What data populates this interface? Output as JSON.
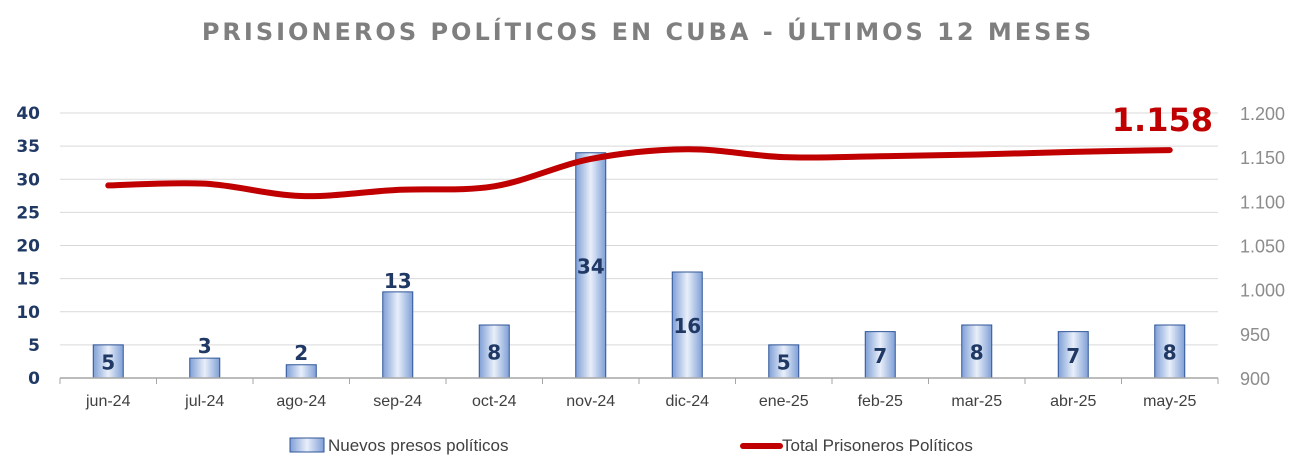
{
  "chart_data": {
    "type": "bar",
    "title": "PRISIONEROS POLÍTICOS EN CUBA - ÚLTIMOS 12 MESES",
    "categories": [
      "jun-24",
      "jul-24",
      "ago-24",
      "sep-24",
      "oct-24",
      "nov-24",
      "dic-24",
      "ene-25",
      "feb-25",
      "mar-25",
      "abr-25",
      "may-25"
    ],
    "series": [
      {
        "name": "Nuevos presos políticos",
        "type": "bar",
        "axis": "left",
        "color": "#8fa9dc",
        "values": [
          5,
          3,
          2,
          13,
          8,
          34,
          16,
          5,
          7,
          8,
          7,
          8
        ]
      },
      {
        "name": "Total Prisoneros Políticos",
        "type": "line",
        "axis": "right",
        "color": "#c00000",
        "values": [
          1118,
          1120,
          1106,
          1113,
          1117,
          1148,
          1159,
          1150,
          1151,
          1153,
          1156,
          1158
        ]
      }
    ],
    "y_left": {
      "min": 0,
      "max": 40,
      "step": 5,
      "ticks": [
        "0",
        "5",
        "10",
        "15",
        "20",
        "25",
        "30",
        "35",
        "40"
      ]
    },
    "y_right": {
      "min": 900,
      "max": 1200,
      "step": 50,
      "ticks": [
        "900",
        "950",
        "1.000",
        "1.050",
        "1.100",
        "1.150",
        "1.200"
      ]
    },
    "grid": true,
    "legend_position": "bottom",
    "callout": "1.158"
  }
}
